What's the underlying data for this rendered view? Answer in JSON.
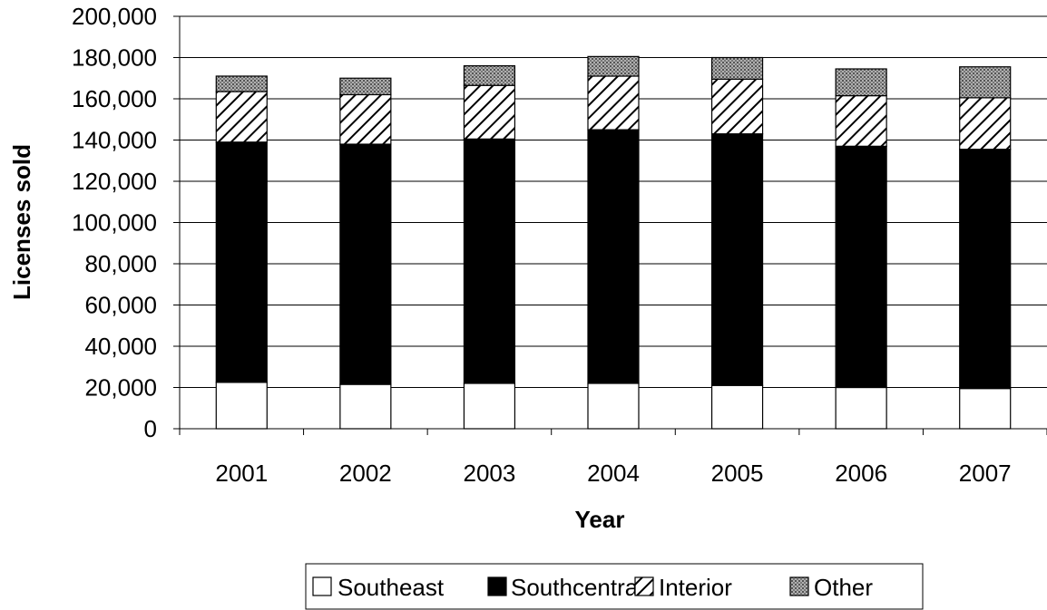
{
  "chart_data": {
    "type": "bar",
    "stacked": true,
    "categories": [
      "2001",
      "2002",
      "2003",
      "2004",
      "2005",
      "2006",
      "2007"
    ],
    "series": [
      {
        "name": "Southeast",
        "values": [
          22500,
          21500,
          22000,
          22000,
          21000,
          20000,
          19500
        ],
        "pattern": "white"
      },
      {
        "name": "Southcentral",
        "values": [
          116500,
          116500,
          118500,
          123000,
          122000,
          117000,
          116000
        ],
        "pattern": "black"
      },
      {
        "name": "Interior",
        "values": [
          24500,
          24000,
          26000,
          26000,
          26500,
          24500,
          25000
        ],
        "pattern": "hatch"
      },
      {
        "name": "Other",
        "values": [
          7500,
          8000,
          9500,
          9500,
          10500,
          13000,
          15000
        ],
        "pattern": "dots"
      }
    ],
    "xlabel": "Year",
    "ylabel": "Licenses sold",
    "ylim": [
      0,
      200000
    ],
    "yticks": [
      "0",
      "20,000",
      "40,000",
      "60,000",
      "80,000",
      "100,000",
      "120,000",
      "140,000",
      "160,000",
      "180,000",
      "200,000"
    ],
    "ytick_values": [
      0,
      20000,
      40000,
      60000,
      80000,
      100000,
      120000,
      140000,
      160000,
      180000,
      200000
    ],
    "grid": true,
    "legend_position": "bottom"
  }
}
